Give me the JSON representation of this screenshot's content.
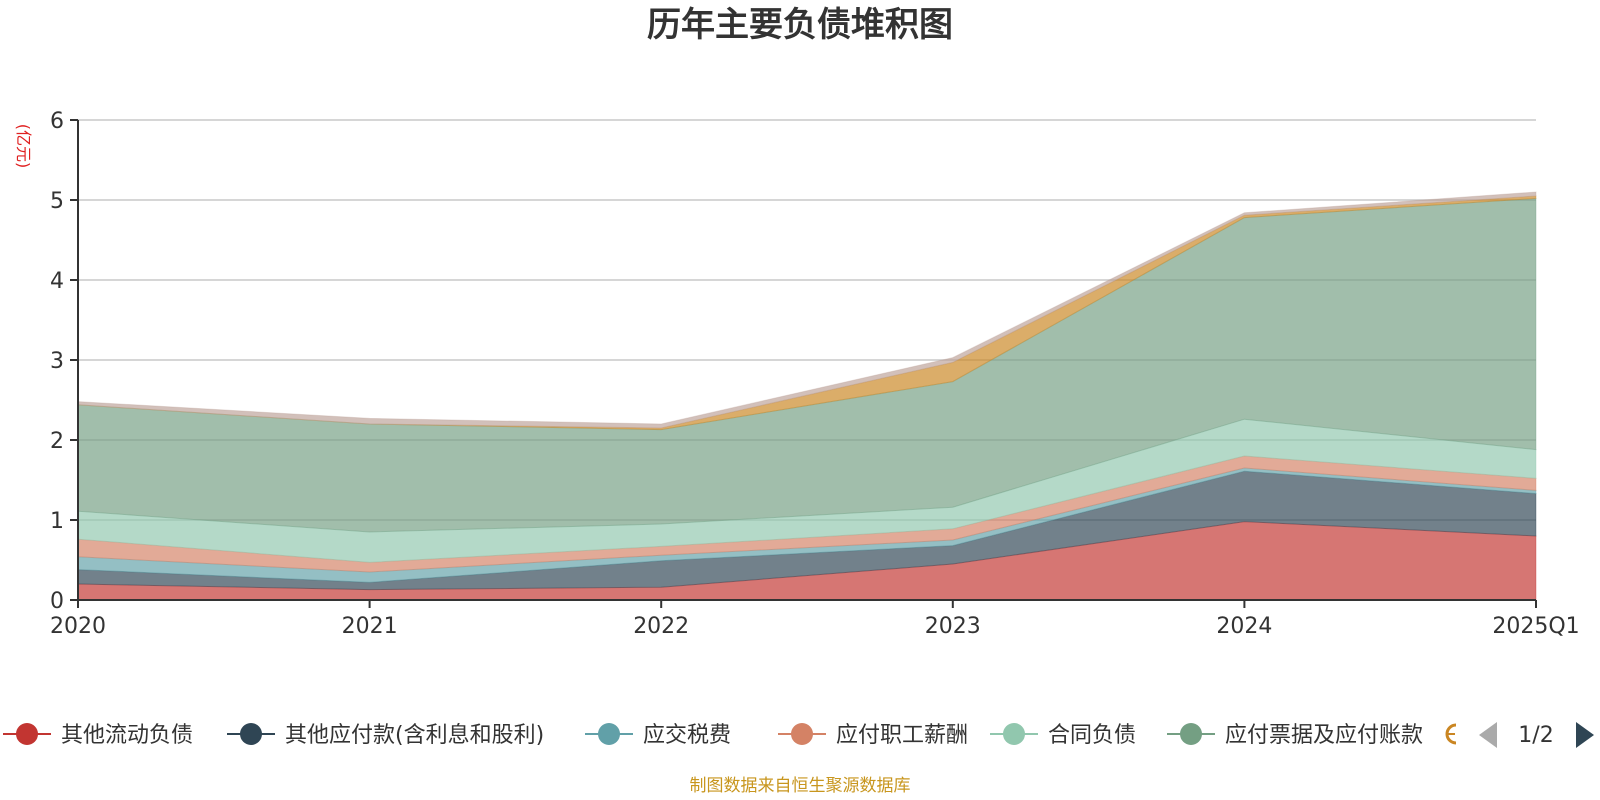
{
  "chart_data": {
    "type": "area",
    "stacked": true,
    "title": "历年主要负债堆积图",
    "unit_label": "(亿元)",
    "categories": [
      "2020",
      "2021",
      "2022",
      "2023",
      "2024",
      "2025Q1"
    ],
    "ylim": [
      0,
      6
    ],
    "y_ticks": [
      0,
      1,
      2,
      3,
      4,
      5,
      6
    ],
    "grid": true,
    "legend_position": "bottom",
    "series": [
      {
        "name": "其他流动负债",
        "color": "#c23531",
        "values": [
          0.2,
          0.13,
          0.16,
          0.45,
          0.98,
          0.8
        ]
      },
      {
        "name": "其他应付款(含利息和股利)",
        "color": "#2f4554",
        "values": [
          0.18,
          0.09,
          0.33,
          0.23,
          0.63,
          0.53
        ]
      },
      {
        "name": "应交税费",
        "color": "#61a0a8",
        "values": [
          0.16,
          0.13,
          0.07,
          0.07,
          0.04,
          0.04
        ]
      },
      {
        "name": "应付职工薪酬",
        "color": "#d48265",
        "values": [
          0.22,
          0.12,
          0.11,
          0.14,
          0.15,
          0.15
        ]
      },
      {
        "name": "合同负债",
        "color": "#91c7ae",
        "values": [
          0.35,
          0.38,
          0.28,
          0.27,
          0.46,
          0.36
        ]
      },
      {
        "name": "应付票据及应付账款",
        "color": "#749f83",
        "values": [
          1.33,
          1.35,
          1.18,
          1.57,
          2.52,
          3.14
        ]
      },
      {
        "name": "",
        "color": "#ca8622",
        "values": [
          0.0,
          0.0,
          0.02,
          0.24,
          0.03,
          0.03
        ]
      },
      {
        "name": "",
        "color": "#bda29a",
        "values": [
          0.04,
          0.07,
          0.05,
          0.06,
          0.03,
          0.05
        ]
      }
    ],
    "legend_page": "1/2"
  },
  "footer": {
    "source": "制图数据来自恒生聚源数据库"
  }
}
